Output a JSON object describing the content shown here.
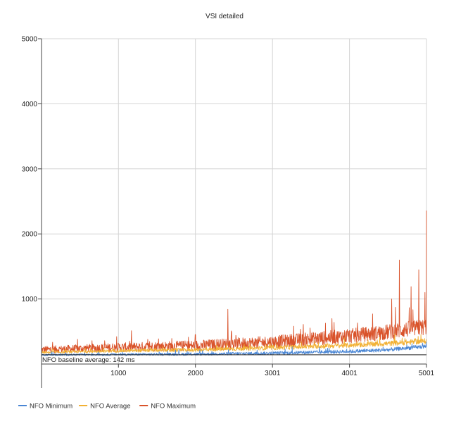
{
  "chart_data": {
    "type": "line",
    "title": "VSI detailed",
    "x": [
      1,
      1000,
      2000,
      3001,
      4001,
      5001
    ],
    "x_tick_labels": [
      "1000",
      "2000",
      "3001",
      "4001",
      "5001"
    ],
    "xlim": [
      1,
      5001
    ],
    "y_tick_labels": [
      "1000",
      "2000",
      "3000",
      "4000",
      "5000"
    ],
    "ylim": [
      0,
      5000
    ],
    "grid": true,
    "legend_position": "bottom-left",
    "baseline": {
      "label": "NFO baseline average: 142 ms",
      "value": 142
    },
    "series": [
      {
        "name": "NFO Minimum",
        "color": "#4a86d4",
        "keypoints": [
          [
            1,
            140
          ],
          [
            1000,
            145
          ],
          [
            2000,
            150
          ],
          [
            3001,
            165
          ],
          [
            4001,
            190
          ],
          [
            4500,
            215
          ],
          [
            5001,
            270
          ]
        ],
        "noise": 45
      },
      {
        "name": "NFO Average",
        "color": "#f2b134",
        "keypoints": [
          [
            1,
            175
          ],
          [
            1000,
            200
          ],
          [
            2000,
            215
          ],
          [
            3001,
            245
          ],
          [
            4001,
            285
          ],
          [
            4500,
            310
          ],
          [
            5001,
            350
          ]
        ],
        "noise": 60
      },
      {
        "name": "NFO Maximum",
        "color": "#d9532b",
        "keypoints": [
          [
            1,
            215
          ],
          [
            1000,
            250
          ],
          [
            2000,
            275
          ],
          [
            3001,
            330
          ],
          [
            4001,
            420
          ],
          [
            4500,
            480
          ],
          [
            5001,
            560
          ]
        ],
        "noise": 180,
        "spikes": [
          [
            2420,
            840
          ],
          [
            3400,
            610
          ],
          [
            3800,
            640
          ],
          [
            4300,
            770
          ],
          [
            4550,
            1000
          ],
          [
            4650,
            1600
          ],
          [
            4800,
            1190
          ],
          [
            4900,
            1450
          ],
          [
            4980,
            1100
          ],
          [
            5001,
            2360
          ]
        ]
      }
    ]
  }
}
